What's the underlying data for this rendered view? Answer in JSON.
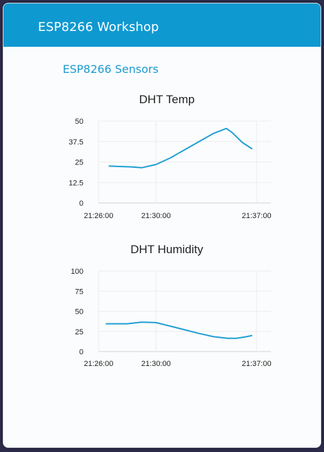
{
  "header": {
    "title": "ESP8266 Workshop"
  },
  "group": {
    "title": "ESP8266 Sensors"
  },
  "colors": {
    "header_bg": "#0f99d1",
    "accent": "#1c99cf",
    "series": "#1f9fd3"
  },
  "chart_data": [
    {
      "type": "line",
      "title": "DHT Temp",
      "xlabel": "",
      "ylabel": "",
      "x_ticks": [
        "21:26:00",
        "21:30:00",
        "21:37:00"
      ],
      "x_tick_minutes": [
        0,
        4,
        11
      ],
      "y_ticks": [
        "0",
        "12.5",
        "25",
        "37.5",
        "50"
      ],
      "ylim": [
        0,
        50
      ],
      "xlim_minutes": [
        0,
        12
      ],
      "grid": true,
      "series": [
        {
          "x_minutes": [
            0.7,
            2.3,
            3.0,
            4.0,
            5.0,
            6.0,
            7.0,
            8.0,
            8.9,
            9.3,
            10.0,
            10.7
          ],
          "values": [
            22.5,
            22.0,
            21.5,
            23.5,
            27.5,
            32.5,
            37.5,
            42.5,
            45.5,
            43.0,
            37.0,
            33.0
          ]
        }
      ]
    },
    {
      "type": "line",
      "title": "DHT Humidity",
      "xlabel": "",
      "ylabel": "",
      "x_ticks": [
        "21:26:00",
        "21:30:00",
        "21:37:00"
      ],
      "x_tick_minutes": [
        0,
        4,
        11
      ],
      "y_ticks": [
        "0",
        "25",
        "50",
        "75",
        "100"
      ],
      "ylim": [
        0,
        100
      ],
      "xlim_minutes": [
        0,
        12
      ],
      "grid": true,
      "series": [
        {
          "x_minutes": [
            0.5,
            2.0,
            3.0,
            4.0,
            5.0,
            6.0,
            7.0,
            8.0,
            9.0,
            9.6,
            10.3,
            10.7
          ],
          "values": [
            34.5,
            34.5,
            36.5,
            36.0,
            31.5,
            27.0,
            22.5,
            18.5,
            16.5,
            16.5,
            18.5,
            20.0
          ]
        }
      ]
    }
  ]
}
